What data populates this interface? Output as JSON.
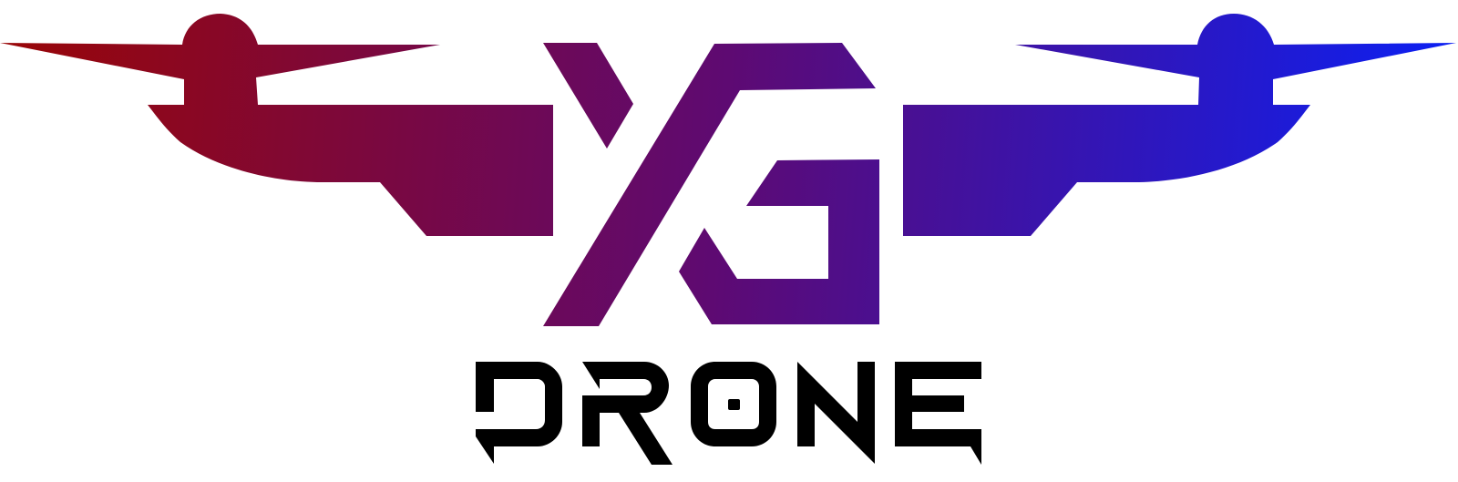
{
  "logo": {
    "monogram": "YG",
    "wordmark": "DRONE",
    "gradient": {
      "start": "#9A0606",
      "mid": "#5E0A72",
      "end": "#0B20F4"
    },
    "wordmark_color": "#000000",
    "background": "#FFFFFF"
  }
}
